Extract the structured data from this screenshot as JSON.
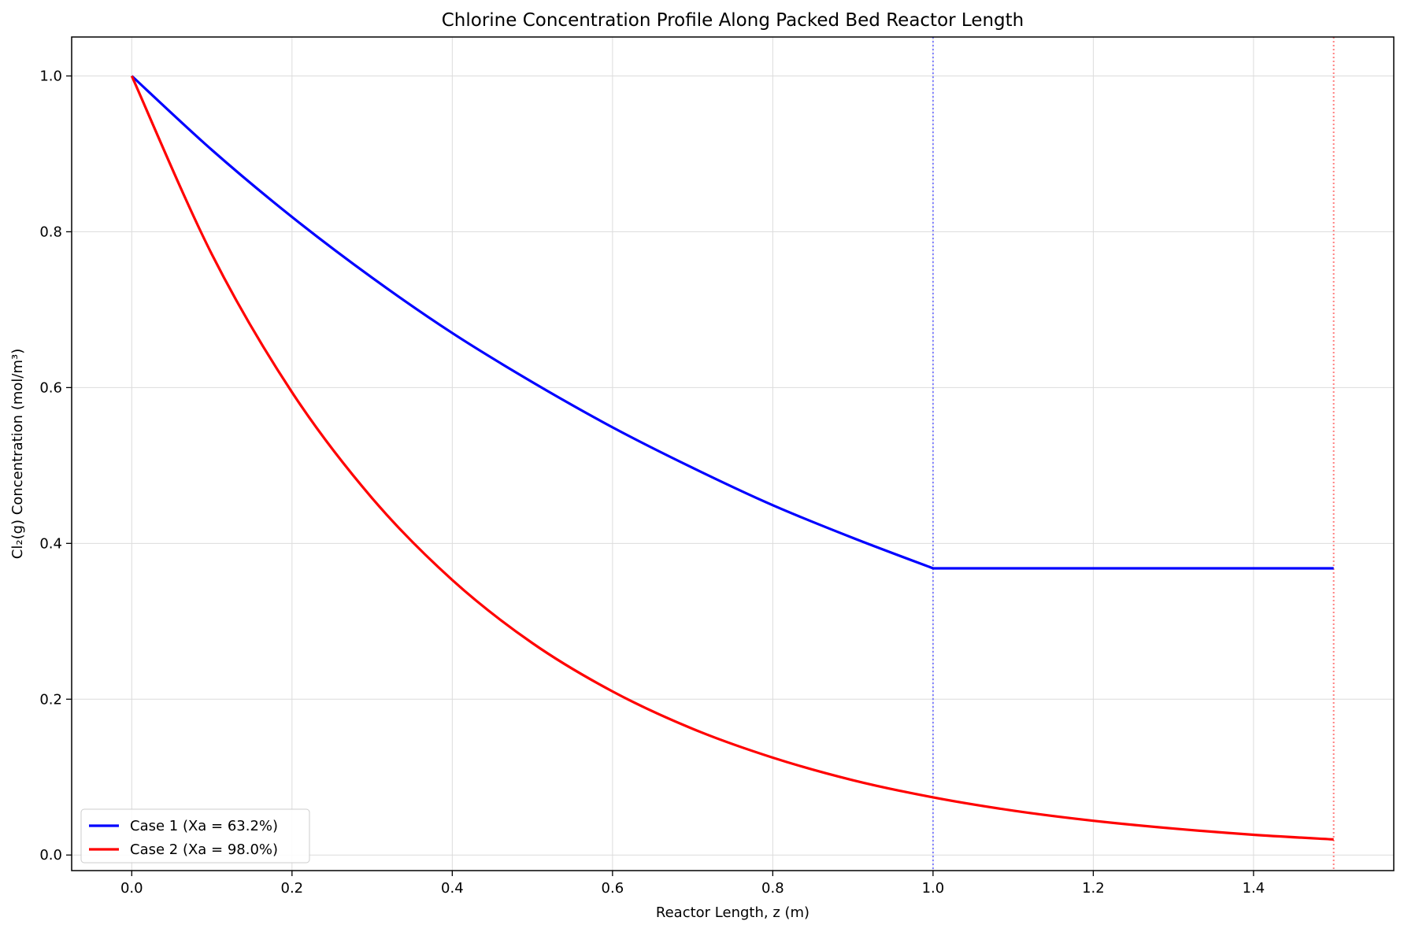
{
  "chart_data": {
    "type": "line",
    "title": "Chlorine Concentration Profile Along Packed Bed Reactor Length",
    "xlabel": "Reactor Length, z (m)",
    "ylabel": "Cl₂(g) Concentration (mol/m³)",
    "xlim": [
      -0.075,
      1.575
    ],
    "ylim": [
      -0.02,
      1.05
    ],
    "xticks": [
      0.0,
      0.2,
      0.4,
      0.6,
      0.8,
      1.0,
      1.2,
      1.4
    ],
    "xtick_labels": [
      "0.0",
      "0.2",
      "0.4",
      "0.6",
      "0.8",
      "1.0",
      "1.2",
      "1.4"
    ],
    "yticks": [
      0.0,
      0.2,
      0.4,
      0.6,
      0.8,
      1.0
    ],
    "ytick_labels": [
      "0.0",
      "0.2",
      "0.4",
      "0.6",
      "0.8",
      "1.0"
    ],
    "grid": true,
    "legend_position": "lower-left",
    "series": [
      {
        "name": "Case 1 (Xa = 63.2%)",
        "color": "#0000ff",
        "x": [
          0.0,
          0.1,
          0.2,
          0.3,
          0.4,
          0.5,
          0.6,
          0.7,
          0.8,
          0.9,
          1.0,
          1.1,
          1.2,
          1.3,
          1.4,
          1.5
        ],
        "y": [
          1.0,
          0.905,
          0.819,
          0.741,
          0.67,
          0.607,
          0.549,
          0.497,
          0.449,
          0.407,
          0.368,
          0.368,
          0.368,
          0.368,
          0.368,
          0.368
        ]
      },
      {
        "name": "Case 2 (Xa = 98.0%)",
        "color": "#ff0000",
        "x": [
          0.0,
          0.1,
          0.2,
          0.3,
          0.4,
          0.5,
          0.6,
          0.7,
          0.8,
          0.9,
          1.0,
          1.1,
          1.2,
          1.3,
          1.4,
          1.5
        ],
        "y": [
          1.0,
          0.771,
          0.594,
          0.458,
          0.353,
          0.272,
          0.21,
          0.162,
          0.125,
          0.096,
          0.074,
          0.057,
          0.044,
          0.034,
          0.026,
          0.02
        ]
      }
    ],
    "reference_lines": [
      {
        "x": 1.0,
        "color": "#8080ff",
        "style": "dotted"
      },
      {
        "x": 1.5,
        "color": "#ff8080",
        "style": "dotted"
      }
    ]
  }
}
